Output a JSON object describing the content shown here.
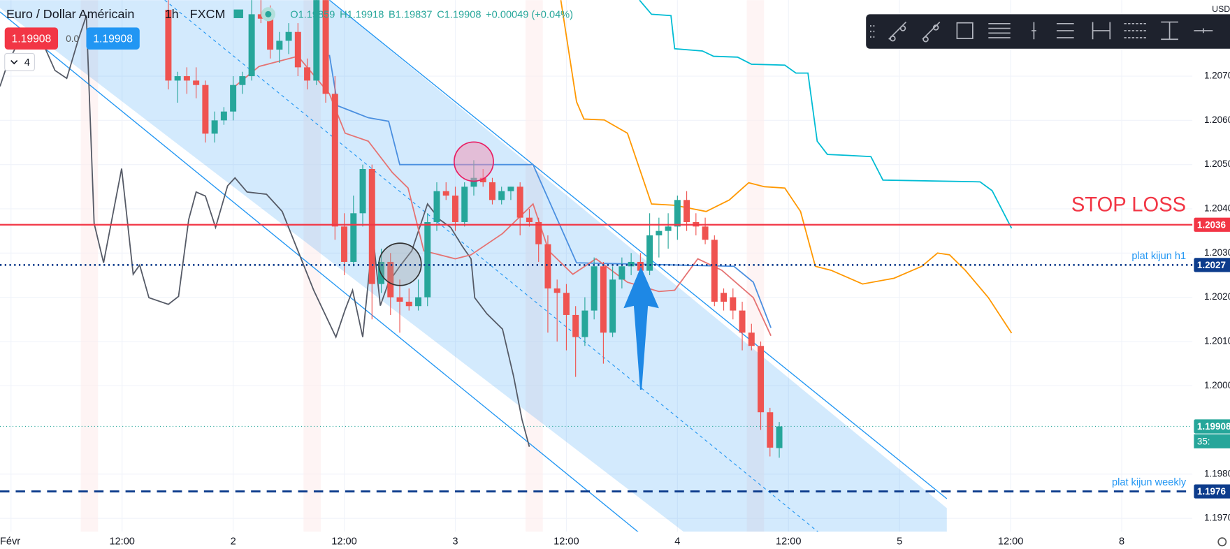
{
  "chart_data": {
    "type": "candlestick",
    "symbol": "Euro / Dollar Américain",
    "interval": "1h",
    "exchange": "FXCM",
    "currency": "USD",
    "ohlc": [
      "O1.19859",
      "H1.19918",
      "B1.19837",
      "C1.19908",
      "+0.00049 (+0.04%)"
    ],
    "sell_price": "1.19908",
    "spread": "0.0",
    "buy_price": "1.19908",
    "indicator_count": "4",
    "up_color": "#26a69a",
    "down_color": "#ef5350",
    "xlim": [
      -1.19,
      127.63
    ],
    "ylim": [
      1.1967,
      1.20872
    ],
    "xticks": [
      {
        "value": 0,
        "label": "Févr"
      },
      {
        "value": 12,
        "label": "12:00"
      },
      {
        "value": 24,
        "label": "2"
      },
      {
        "value": 36,
        "label": "12:00"
      },
      {
        "value": 48,
        "label": "3"
      },
      {
        "value": 60,
        "label": "12:00"
      },
      {
        "value": 72,
        "label": "4"
      },
      {
        "value": 84,
        "label": "12:00"
      },
      {
        "value": 96,
        "label": "5"
      },
      {
        "value": 108,
        "label": "12:00"
      },
      {
        "value": 120,
        "label": "8"
      }
    ],
    "yticks": [
      {
        "value": 1.207,
        "label": "1.2070"
      },
      {
        "value": 1.206,
        "label": "1.2060"
      },
      {
        "value": 1.205,
        "label": "1.2050"
      },
      {
        "value": 1.204,
        "label": "1.2040"
      },
      {
        "value": 1.203,
        "label": "1.2030"
      },
      {
        "value": 1.202,
        "label": "1.2020"
      },
      {
        "value": 1.201,
        "label": "1.2010"
      },
      {
        "value": 1.2,
        "label": "1.2000"
      },
      {
        "value": 1.198,
        "label": "1.1980"
      },
      {
        "value": 1.197,
        "label": "1.1970"
      }
    ],
    "grid": true,
    "x": [
      17,
      18,
      19,
      20,
      21,
      22,
      23,
      24,
      25,
      26,
      27,
      28,
      29,
      30,
      31,
      32,
      33,
      34,
      35,
      36,
      37,
      38,
      39,
      40,
      41,
      42,
      43,
      44,
      45,
      46,
      47,
      48,
      49,
      50,
      51,
      52,
      53,
      54,
      55,
      56,
      57,
      58,
      59,
      60,
      61,
      62,
      63,
      64,
      65,
      66,
      67,
      68,
      69,
      70,
      71,
      72,
      73,
      74,
      75,
      76,
      77,
      78,
      79,
      80,
      81,
      82,
      83
    ],
    "open": [
      1.2085,
      1.2069,
      1.207,
      1.2069,
      1.2068,
      1.2057,
      1.206,
      1.2062,
      1.2068,
      1.207,
      1.2084,
      1.2083,
      1.2076,
      1.2078,
      1.208,
      1.2072,
      1.2069,
      1.2088,
      1.2066,
      1.2036,
      1.2028,
      1.2039,
      1.2049,
      1.2023,
      1.2028,
      1.202,
      1.2019,
      1.2018,
      1.202,
      1.2037,
      1.2044,
      1.2043,
      1.2037,
      1.2045,
      1.2047,
      1.2046,
      1.2042,
      1.2044,
      1.2045,
      1.2038,
      1.2037,
      1.2032,
      1.2022,
      1.2021,
      1.2016,
      1.2011,
      1.2017,
      1.2027,
      1.2012,
      1.2024,
      1.2027,
      1.2028,
      1.2026,
      1.2034,
      1.2035,
      1.2036,
      1.2042,
      1.2037,
      1.2036,
      1.2033,
      1.2021,
      1.202,
      1.2017,
      1.2012,
      1.2009,
      1.1994,
      1.19859
    ],
    "high": [
      1.2088,
      1.2071,
      1.2072,
      1.2072,
      1.2069,
      1.2062,
      1.2063,
      1.207,
      1.2071,
      1.2088,
      1.2088,
      1.2086,
      1.208,
      1.2082,
      1.2082,
      1.2074,
      1.209,
      1.209,
      1.207,
      1.2039,
      1.2043,
      1.205,
      1.205,
      1.2031,
      1.203,
      1.2024,
      1.2022,
      1.2024,
      1.2039,
      1.2046,
      1.2046,
      1.2045,
      1.2046,
      1.2051,
      1.2049,
      1.2047,
      1.2045,
      1.2045,
      1.2046,
      1.204,
      1.2038,
      1.2034,
      1.2024,
      1.2023,
      1.2018,
      1.202,
      1.2029,
      1.2028,
      1.2027,
      1.2029,
      1.203,
      1.203,
      1.2039,
      1.2038,
      1.2039,
      1.2043,
      1.2044,
      1.2039,
      1.2038,
      1.2034,
      1.2022,
      1.2022,
      1.2019,
      1.2014,
      1.201,
      1.1995,
      1.19918
    ],
    "low": [
      1.2067,
      1.2064,
      1.2066,
      1.2065,
      1.2055,
      1.2055,
      1.2059,
      1.206,
      1.2066,
      1.2069,
      1.2082,
      1.2074,
      1.2073,
      1.2075,
      1.207,
      1.2067,
      1.2068,
      1.2064,
      1.2033,
      1.2025,
      1.2027,
      1.2036,
      1.2015,
      1.2021,
      1.2016,
      1.2012,
      1.2017,
      1.2017,
      1.2018,
      1.2035,
      1.2042,
      1.2035,
      1.2036,
      1.2043,
      1.2045,
      1.2041,
      1.2041,
      1.2042,
      1.2034,
      1.2036,
      1.2028,
      1.2012,
      1.201,
      1.2008,
      1.2002,
      1.2009,
      1.2015,
      1.2005,
      1.2011,
      1.2022,
      1.2025,
      1.2024,
      1.2025,
      1.2029,
      1.2031,
      1.2033,
      1.2035,
      1.2034,
      1.2032,
      1.2018,
      1.2017,
      1.2015,
      1.2008,
      1.2008,
      1.199,
      1.1984,
      1.19837
    ],
    "close": [
      1.2069,
      1.207,
      1.2069,
      1.2068,
      1.2057,
      1.206,
      1.2062,
      1.2068,
      1.207,
      1.2084,
      1.2083,
      1.2076,
      1.2078,
      1.208,
      1.2072,
      1.2069,
      1.2088,
      1.2066,
      1.2036,
      1.2028,
      1.2039,
      1.2049,
      1.2023,
      1.2028,
      1.202,
      1.2019,
      1.2018,
      1.202,
      1.2037,
      1.2044,
      1.2043,
      1.2037,
      1.2045,
      1.2047,
      1.2046,
      1.2042,
      1.2044,
      1.2045,
      1.2038,
      1.2037,
      1.2032,
      1.2022,
      1.2021,
      1.2016,
      1.2011,
      1.2017,
      1.2027,
      1.2012,
      1.2024,
      1.2027,
      1.2028,
      1.2026,
      1.2034,
      1.2035,
      1.2036,
      1.2042,
      1.2037,
      1.2036,
      1.2033,
      1.2019,
      1.2019,
      1.2017,
      1.2012,
      1.2009,
      1.1994,
      1.1986,
      1.19908
    ],
    "lines": [
      {
        "color": "#ff9800",
        "x": [
          59.4,
          61.1,
          61.9,
          64.1,
          66.6,
          69.2,
          71.7,
          75.1,
          77.6,
          79.7,
          81.4,
          83.6,
          85.3,
          86.9,
          88.6,
          92.0,
          95.4,
          98.4,
          100.1,
          101.4,
          103.1,
          105.6,
          108.1
        ],
        "values": [
          1.20872,
          1.20642,
          1.20603,
          1.20601,
          1.20571,
          1.20411,
          1.20408,
          1.20394,
          1.2042,
          1.20459,
          1.2045,
          1.20447,
          1.20394,
          1.2027,
          1.20261,
          1.2023,
          1.20243,
          1.2027,
          1.203,
          1.20296,
          1.20261,
          1.20199,
          1.20119
        ]
      },
      {
        "color": "#00bcd4",
        "x": [
          67.9,
          69.2,
          71.3,
          71.7,
          74.7,
          75.9,
          78.5,
          80.0,
          83.6,
          84.8,
          86.1,
          87.1,
          88.2,
          90.3,
          92.9,
          94.2,
          104.7,
          106.0,
          108.1
        ],
        "values": [
          1.20872,
          1.2084,
          1.20837,
          1.20762,
          1.20757,
          1.20745,
          1.20743,
          1.20727,
          1.20725,
          1.20707,
          1.20707,
          1.20553,
          1.20523,
          1.20521,
          1.20518,
          1.20465,
          1.20461,
          1.20441,
          1.20356
        ]
      },
      {
        "color": "#555a66",
        "x": [
          -1.19,
          -0.34,
          1.36,
          3.05,
          4.75,
          6.02,
          7.29,
          8.14,
          8.98,
          10.0,
          11.95,
          13.2,
          13.9,
          14.9,
          17.0,
          18.1,
          19.2,
          20.0,
          21.0,
          22.1,
          23.4,
          24.2,
          25.5,
          27.6,
          29.3,
          31.0,
          32.7,
          35.1,
          36.1,
          36.9,
          38.0,
          39.1,
          39.9,
          40.8,
          42.0,
          43.3,
          45.0,
          46.3,
          47.5,
          48.8,
          49.7,
          50.1,
          51.4,
          53.1,
          54.3,
          55.2,
          56.0
        ],
        "values": [
          1.20677,
          1.2073,
          1.20801,
          1.20793,
          1.20713,
          1.20695,
          1.20784,
          1.20837,
          1.20367,
          1.20278,
          1.20491,
          1.20252,
          1.20273,
          1.20199,
          1.20184,
          1.20202,
          1.20376,
          1.20438,
          1.20429,
          1.20358,
          1.20452,
          1.2047,
          1.20438,
          1.20433,
          1.20394,
          1.20305,
          1.20216,
          1.2011,
          1.20172,
          1.20216,
          1.2011,
          1.2034,
          1.20181,
          1.20234,
          1.2027,
          1.20305,
          1.20411,
          1.20376,
          1.20358,
          1.20314,
          1.20287,
          1.20199,
          1.20163,
          1.20128,
          1.20021,
          1.19924,
          1.19862
        ]
      },
      {
        "color": "#4a8fe0",
        "x": [
          34.4,
          35.3,
          38.6,
          40.8,
          42.0,
          56.4,
          61.1,
          78.1,
          80.2,
          82.1
        ],
        "values": [
          1.20748,
          1.20633,
          1.20606,
          1.20598,
          1.205,
          1.205,
          1.20278,
          1.2027,
          1.20234,
          1.20131
        ]
      },
      {
        "color": "#e57373",
        "x": [
          24.2,
          26.8,
          31.0,
          34.4,
          36.1,
          38.6,
          41.2,
          42.9,
          44.6,
          48.0,
          49.7,
          53.1,
          56.4,
          58.1,
          60.7,
          63.2,
          66.6,
          70.0,
          71.7,
          74.2,
          76.8,
          80.2,
          82.1
        ],
        "values": [
          1.20677,
          1.20722,
          1.20745,
          1.2066,
          1.20571,
          1.20553,
          1.20482,
          1.20447,
          1.20305,
          1.20287,
          1.20296,
          1.20344,
          1.20411,
          1.20305,
          1.20252,
          1.20287,
          1.20234,
          1.20213,
          1.20216,
          1.20287,
          1.20261,
          1.20199,
          1.20113
        ]
      }
    ],
    "levels": [
      {
        "value": 1.20364,
        "color": "#f23645",
        "style": "solid",
        "label": "STOP LOSS",
        "price_label": "1.2036"
      },
      {
        "value": 1.20273,
        "color": "#0d3c8c",
        "style": "dotted",
        "label": "plat kijun h1",
        "price_label": "1.2027"
      },
      {
        "value": 1.19761,
        "color": "#0d3c8c",
        "style": "dashed",
        "label": "plat kijun weekly",
        "price_label": "1.1976"
      },
      {
        "value": 1.19908,
        "color": "#26a69a",
        "style": "thin-dotted",
        "price_label": "1.19908",
        "countdown": "35:"
      }
    ]
  }
}
